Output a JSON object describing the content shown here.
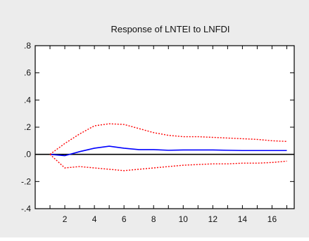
{
  "chart_data": {
    "type": "line",
    "title": "Response of LNTEI to LNFDI",
    "x": [
      1,
      2,
      3,
      4,
      5,
      6,
      7,
      8,
      9,
      10,
      11,
      12,
      13,
      14,
      15,
      16,
      17
    ],
    "xlim": [
      0,
      17.5
    ],
    "ylim": [
      -0.4,
      0.8
    ],
    "x_ticks": [
      "2",
      "4",
      "6",
      "8",
      "10",
      "12",
      "14",
      "16"
    ],
    "y_ticks": [
      ".8",
      ".6",
      ".4",
      ".2",
      ".0",
      "-.2",
      "-.4"
    ],
    "series": [
      {
        "role": "response",
        "color": "#0000ff",
        "style": "solid",
        "values": [
          0.0,
          -0.01,
          0.02,
          0.045,
          0.06,
          0.045,
          0.035,
          0.035,
          0.03,
          0.032,
          0.032,
          0.032,
          0.03,
          0.028,
          0.028,
          0.028,
          0.028
        ]
      },
      {
        "role": "upper-band",
        "color": "#ff0000",
        "style": "dotted",
        "values": [
          0.0,
          0.08,
          0.15,
          0.21,
          0.225,
          0.22,
          0.19,
          0.16,
          0.14,
          0.13,
          0.13,
          0.125,
          0.12,
          0.115,
          0.11,
          0.1,
          0.095
        ]
      },
      {
        "role": "lower-band",
        "color": "#ff0000",
        "style": "dotted",
        "values": [
          0.0,
          -0.1,
          -0.09,
          -0.1,
          -0.11,
          -0.12,
          -0.11,
          -0.1,
          -0.09,
          -0.08,
          -0.075,
          -0.07,
          -0.07,
          -0.065,
          -0.065,
          -0.06,
          -0.05
        ]
      }
    ],
    "zero_line_color": "#000000",
    "grid": false,
    "legend": "none"
  }
}
